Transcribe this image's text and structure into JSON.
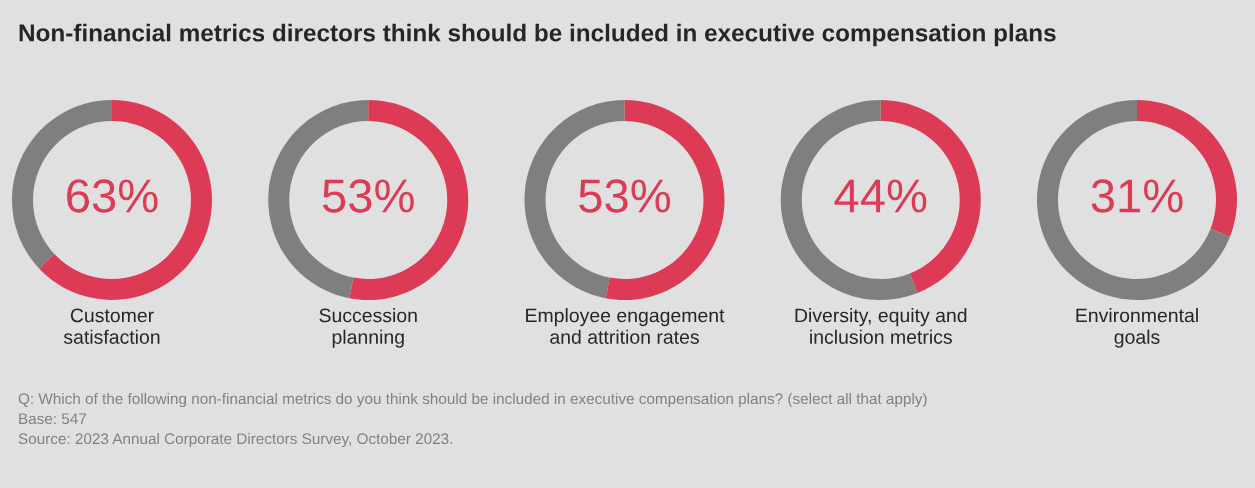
{
  "chart_data": [
    {
      "type": "donut",
      "title": "Non-financial metrics directors think should be included in executive compensation plans",
      "xlabel": "Customer\nsatisfaction",
      "categories": [
        null,
        null
      ],
      "values": [
        63,
        37
      ],
      "colors": [
        "#dc3a55",
        "#7f7f7f"
      ],
      "value_labels": [
        "63%",
        null
      ]
    },
    {
      "type": "donut",
      "xlabel": "Succession\nplanning",
      "categories": [
        null,
        null
      ],
      "values": [
        53,
        47
      ],
      "colors": [
        "#dc3a55",
        "#7f7f7f"
      ],
      "value_labels": [
        "53%",
        null
      ]
    },
    {
      "type": "donut",
      "xlabel": "Employee engagement\nand attrition rates",
      "categories": [
        null,
        null
      ],
      "values": [
        53,
        47
      ],
      "colors": [
        "#dc3a55",
        "#7f7f7f"
      ],
      "value_labels": [
        "53%",
        null
      ]
    },
    {
      "type": "donut",
      "xlabel": "Diversity, equity and\ninclusion metrics",
      "categories": [
        null,
        null
      ],
      "values": [
        44,
        56
      ],
      "colors": [
        "#dc3a55",
        "#7f7f7f"
      ],
      "value_labels": [
        "44%",
        null
      ]
    },
    {
      "type": "donut",
      "xlabel": "Environmental\ngoals",
      "categories": [
        null,
        null
      ],
      "values": [
        31,
        69
      ],
      "colors": [
        "#dc3a55",
        "#7f7f7f"
      ],
      "value_labels": [
        "31%",
        null
      ],
      "annotations": [
        "Q: Which of the following non-financial metrics do you think should be included in executive compensation plans? (select all that apply)",
        "Base: 547",
        "Source: 2023 Annual Corporate Directors Survey, October 2023."
      ]
    }
  ]
}
